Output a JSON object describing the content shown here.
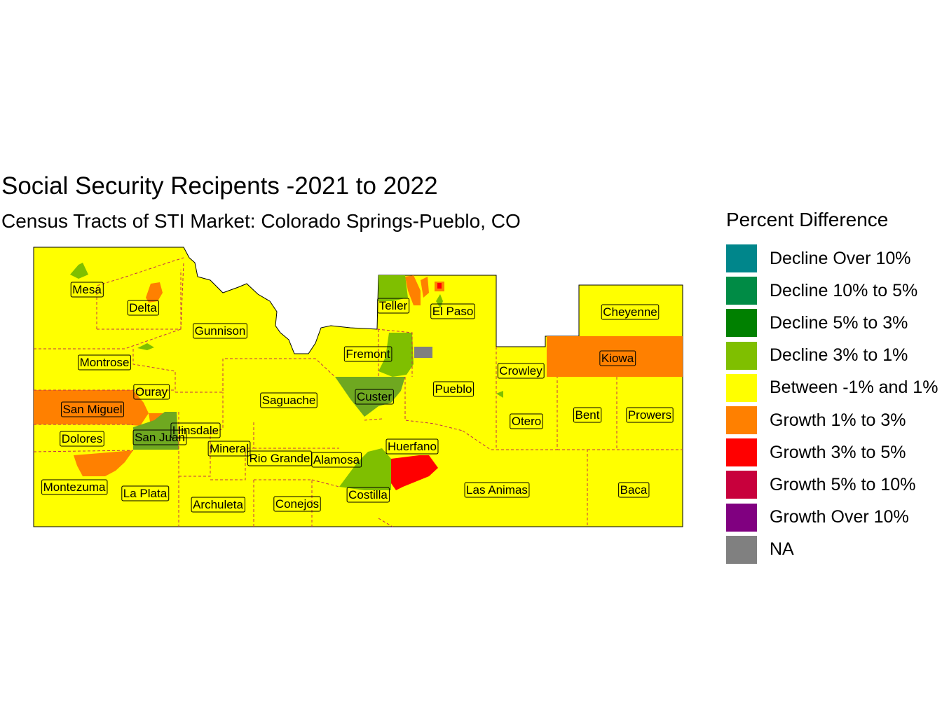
{
  "title": "Social Security Recipents -2021 to 2022",
  "subtitle": "Census Tracts of STI Market: Colorado Springs-Pueblo, CO",
  "legend": {
    "title": "Percent Difference",
    "items": [
      {
        "label": "Decline Over 10%",
        "color": "#00868b"
      },
      {
        "label": "Decline 10% to 5%",
        "color": "#008b45"
      },
      {
        "label": "Decline 5% to 3%",
        "color": "#008000"
      },
      {
        "label": "Decline 3% to 1%",
        "color": "#7fbf00"
      },
      {
        "label": "Between -1% and 1%",
        "color": "#ffff00"
      },
      {
        "label": "Growth 1% to 3%",
        "color": "#ff8000"
      },
      {
        "label": "Growth 3% to 5%",
        "color": "#ff0000"
      },
      {
        "label": "Growth 5% to 10%",
        "color": "#c8003c"
      },
      {
        "label": "Growth Over 10%",
        "color": "#800080"
      },
      {
        "label": "NA",
        "color": "#808080"
      }
    ]
  },
  "counties": [
    {
      "name": "Mesa",
      "category": "Between -1% and 1%"
    },
    {
      "name": "Delta",
      "category": "Between -1% and 1%"
    },
    {
      "name": "Gunnison",
      "category": "Between -1% and 1%"
    },
    {
      "name": "Teller",
      "category": "Between -1% and 1%"
    },
    {
      "name": "El Paso",
      "category": "Between -1% and 1%"
    },
    {
      "name": "Cheyenne",
      "category": "Between -1% and 1%"
    },
    {
      "name": "Montrose",
      "category": "Between -1% and 1%"
    },
    {
      "name": "Fremont",
      "category": "Between -1% and 1%"
    },
    {
      "name": "Kiowa",
      "category": "Growth 1% to 3%"
    },
    {
      "name": "Crowley",
      "category": "Between -1% and 1%"
    },
    {
      "name": "Ouray",
      "category": "Between -1% and 1%"
    },
    {
      "name": "Custer",
      "category": "Decline 3% to 1%"
    },
    {
      "name": "Pueblo",
      "category": "Between -1% and 1%"
    },
    {
      "name": "Saguache",
      "category": "Between -1% and 1%"
    },
    {
      "name": "San Miguel",
      "category": "Growth 1% to 3%"
    },
    {
      "name": "Otero",
      "category": "Between -1% and 1%"
    },
    {
      "name": "Bent",
      "category": "Between -1% and 1%"
    },
    {
      "name": "Prowers",
      "category": "Between -1% and 1%"
    },
    {
      "name": "Hinsdale",
      "category": "Between -1% and 1%"
    },
    {
      "name": "San Juan",
      "category": "Decline 3% to 1%"
    },
    {
      "name": "Dolores",
      "category": "Between -1% and 1%"
    },
    {
      "name": "Huerfano",
      "category": "Between -1% and 1%"
    },
    {
      "name": "Mineral",
      "category": "Between -1% and 1%"
    },
    {
      "name": "Rio Grande",
      "category": "Between -1% and 1%"
    },
    {
      "name": "Alamosa",
      "category": "Between -1% and 1%"
    },
    {
      "name": "Montezuma",
      "category": "Between -1% and 1%"
    },
    {
      "name": "Las Animas",
      "category": "Between -1% and 1%"
    },
    {
      "name": "La Plata",
      "category": "Between -1% and 1%"
    },
    {
      "name": "Baca",
      "category": "Between -1% and 1%"
    },
    {
      "name": "Costilla",
      "category": "Decline 3% to 1%"
    },
    {
      "name": "Archuleta",
      "category": "Between -1% and 1%"
    },
    {
      "name": "Conejos",
      "category": "Between -1% and 1%"
    }
  ]
}
